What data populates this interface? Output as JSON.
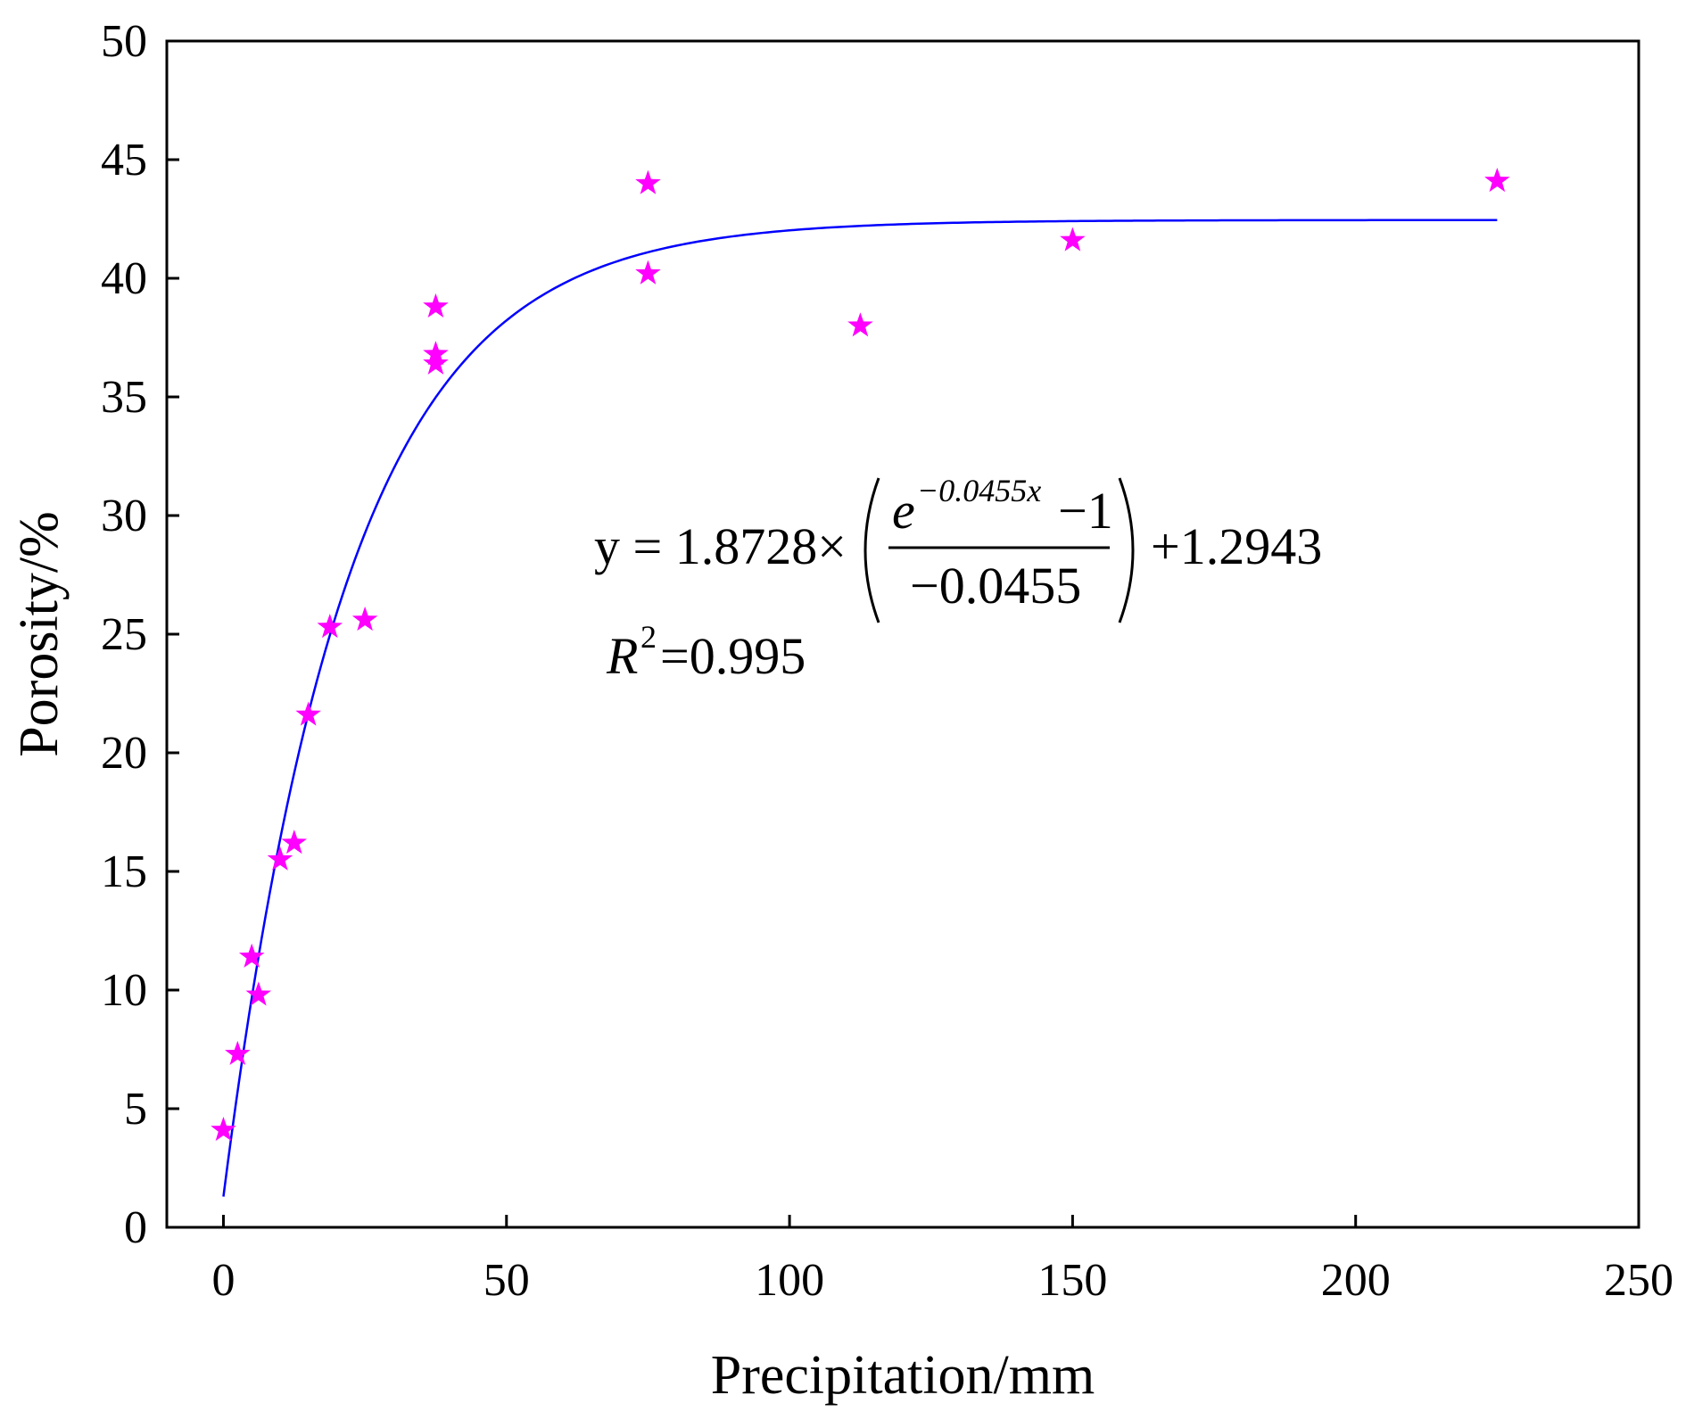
{
  "chart_data": {
    "type": "scatter",
    "title": "",
    "xlabel": "Precipitation/mm",
    "ylabel": "Porosity/%",
    "xlim": [
      -10,
      250
    ],
    "ylim": [
      0,
      50
    ],
    "x_ticks": [
      "0",
      "50",
      "100",
      "150",
      "200",
      "250"
    ],
    "y_ticks": [
      "0",
      "5",
      "10",
      "15",
      "20",
      "25",
      "30",
      "35",
      "40",
      "45",
      "50"
    ],
    "grid": false,
    "legend": "none",
    "series": [
      {
        "marker": "star",
        "color": "#ff00ff",
        "points": [
          {
            "x": 0,
            "y": 4.1
          },
          {
            "x": 2.5,
            "y": 7.3
          },
          {
            "x": 5,
            "y": 11.4
          },
          {
            "x": 6.2,
            "y": 9.8
          },
          {
            "x": 10,
            "y": 15.5
          },
          {
            "x": 12.5,
            "y": 16.2
          },
          {
            "x": 15,
            "y": 21.6
          },
          {
            "x": 18.8,
            "y": 25.3
          },
          {
            "x": 25,
            "y": 25.6
          },
          {
            "x": 37.5,
            "y": 38.8
          },
          {
            "x": 37.5,
            "y": 36.8
          },
          {
            "x": 37.5,
            "y": 36.4
          },
          {
            "x": 75,
            "y": 44.0
          },
          {
            "x": 75,
            "y": 40.2
          },
          {
            "x": 112.5,
            "y": 38.0
          },
          {
            "x": 150,
            "y": 41.6
          },
          {
            "x": 225,
            "y": 44.1
          }
        ]
      }
    ],
    "fit": {
      "color": "#0000ff",
      "a": 1.8728,
      "k": -0.0455,
      "b": 1.2943,
      "x_range": [
        0,
        225
      ]
    },
    "annotations": {
      "eq_prefix": "y = 1.8728×",
      "eq_numerator_base": "e",
      "eq_exponent": "−0.0455x",
      "eq_numerator_tail": " −1",
      "eq_denominator": "−0.0455",
      "eq_suffix": "+1.2943",
      "r2_label": "R",
      "r2_sup": "2",
      "r2_value": "=0.995"
    }
  }
}
